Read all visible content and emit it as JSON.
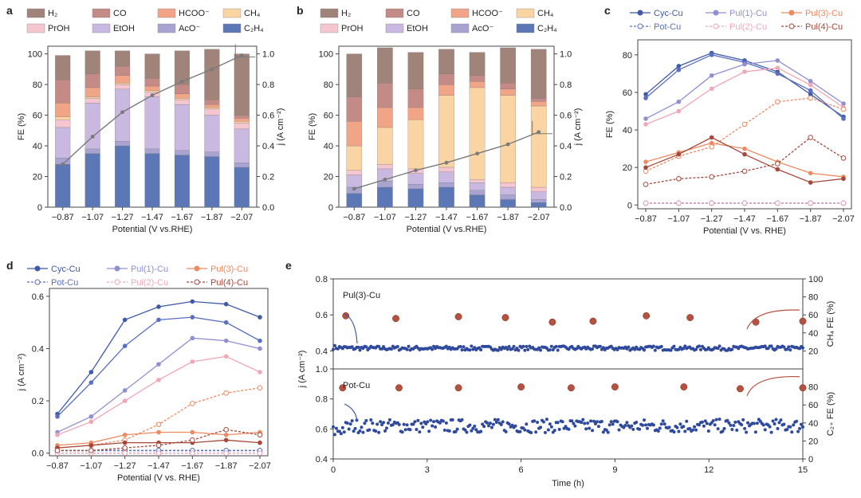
{
  "figure": {
    "panel_letters": [
      "a",
      "b",
      "c",
      "d",
      "e"
    ],
    "legend_ab": [
      {
        "label": "H₂",
        "color": "#a08379"
      },
      {
        "label": "CO",
        "color": "#c48a85"
      },
      {
        "label": "HCOO⁻",
        "color": "#f2a487"
      },
      {
        "label": "CH₄",
        "color": "#fbd4a4"
      },
      {
        "label": "PrOH",
        "color": "#f6c6d0"
      },
      {
        "label": "EtOH",
        "color": "#c9b9e0"
      },
      {
        "label": "AcO⁻",
        "color": "#a9a3d2"
      },
      {
        "label": "C₂H₄",
        "color": "#5b77b5"
      }
    ],
    "legend_cd": [
      {
        "label": "Cyc-Cu",
        "color": "#3f5ba8",
        "dashed": false
      },
      {
        "label": "Pot-Cu",
        "color": "#5a6fc0",
        "dashed": true
      },
      {
        "label": "Pul(1)-Cu",
        "color": "#8f8fd2",
        "dashed": false
      },
      {
        "label": "Pul(2)-Cu",
        "color": "#f0a7b8",
        "dashed": true
      },
      {
        "label": "Pul(3)-Cu",
        "color": "#ec8a62",
        "dashed": false
      },
      {
        "label": "Pul(4)-Cu",
        "color": "#a5483b",
        "dashed": true
      }
    ]
  },
  "chart_data": [
    {
      "id": "a",
      "type": "bar",
      "stacked": true,
      "categories": [
        "−0.87",
        "−1.07",
        "−1.27",
        "−1.47",
        "−1.67",
        "−1.87",
        "−2.07"
      ],
      "series": [
        {
          "name": "C₂H₄",
          "values": [
            28,
            35,
            40,
            35,
            34,
            33,
            26
          ]
        },
        {
          "name": "AcO⁻",
          "values": [
            4,
            3,
            3,
            3,
            3,
            3,
            3
          ]
        },
        {
          "name": "EtOH",
          "values": [
            20,
            30,
            34,
            34,
            30,
            24,
            22
          ]
        },
        {
          "name": "PrOH",
          "values": [
            5,
            3,
            3,
            3,
            3,
            4,
            4
          ]
        },
        {
          "name": "CH₄",
          "values": [
            2,
            1,
            1,
            1,
            1,
            1,
            1
          ]
        },
        {
          "name": "HCOO⁻",
          "values": [
            9,
            6,
            5,
            3,
            3,
            2,
            2
          ]
        },
        {
          "name": "CO",
          "values": [
            15,
            9,
            6,
            5,
            6,
            3,
            2
          ]
        },
        {
          "name": "H₂",
          "values": [
            16,
            15,
            10,
            16,
            22,
            33,
            40
          ]
        }
      ],
      "line": {
        "name": "j",
        "x": [
          0,
          1,
          2,
          3,
          4,
          5,
          6
        ],
        "y": [
          0.28,
          0.46,
          0.62,
          0.73,
          0.82,
          0.9,
          0.99
        ]
      },
      "xlabel": "Potential (V vs.RHE)",
      "ylabel": "FE (%)",
      "y2label": "j (A cm⁻²)",
      "ylim": [
        0,
        105
      ],
      "y2lim": [
        0,
        1.05
      ],
      "yticks": [
        0,
        20,
        40,
        60,
        80,
        100
      ],
      "y2ticks": [
        "0.0",
        "0.2",
        "0.4",
        "0.6",
        "0.8",
        "1.0"
      ]
    },
    {
      "id": "b",
      "type": "bar",
      "stacked": true,
      "categories": [
        "−0.87",
        "−1.07",
        "−1.27",
        "−1.47",
        "−1.67",
        "−1.87",
        "−2.07"
      ],
      "series": [
        {
          "name": "C₂H₄",
          "values": [
            9,
            13,
            12,
            13,
            8,
            5,
            3
          ]
        },
        {
          "name": "AcO⁻",
          "values": [
            4,
            4,
            3,
            3,
            3,
            3,
            2
          ]
        },
        {
          "name": "EtOH",
          "values": [
            8,
            8,
            7,
            7,
            5,
            5,
            5
          ]
        },
        {
          "name": "PrOH",
          "values": [
            3,
            3,
            3,
            3,
            2,
            3,
            3
          ]
        },
        {
          "name": "CH₄",
          "values": [
            16,
            24,
            32,
            47,
            60,
            57,
            53
          ]
        },
        {
          "name": "HCOO⁻",
          "values": [
            16,
            13,
            8,
            7,
            4,
            4,
            3
          ]
        },
        {
          "name": "CO",
          "values": [
            16,
            16,
            12,
            7,
            4,
            4,
            2
          ]
        },
        {
          "name": "H₂",
          "values": [
            28,
            23,
            24,
            16,
            15,
            23,
            32
          ]
        }
      ],
      "line": {
        "name": "j",
        "x": [
          0,
          1,
          2,
          3,
          4,
          5,
          6
        ],
        "y": [
          0.12,
          0.18,
          0.24,
          0.29,
          0.35,
          0.41,
          0.49
        ]
      },
      "xlabel": "Potential (V vs.RHE)",
      "ylabel": "FE (%)",
      "y2label": "j (A cm⁻²)",
      "ylim": [
        0,
        105
      ],
      "y2lim": [
        0,
        1.05
      ],
      "yticks": [
        0,
        20,
        40,
        60,
        80,
        100
      ],
      "y2ticks": [
        "0.0",
        "0.2",
        "0.4",
        "0.6",
        "0.8",
        "1.0"
      ]
    },
    {
      "id": "c",
      "type": "line",
      "categories": [
        "−0.87",
        "−1.07",
        "−1.27",
        "−1.47",
        "−1.67",
        "−1.87",
        "−2.07"
      ],
      "series": [
        {
          "name": "Cyc-Cu",
          "solid": [
            59,
            74,
            81,
            77,
            71,
            59,
            47
          ],
          "dashed": [
            1,
            1,
            1,
            1,
            1,
            1,
            1
          ]
        },
        {
          "name": "Pot-Cu",
          "solid": [
            57,
            72,
            80,
            76,
            70,
            61,
            46
          ],
          "dashed": [
            1,
            1,
            1,
            1,
            1,
            1,
            1
          ]
        },
        {
          "name": "Pul(1)-Cu",
          "solid": [
            46,
            55,
            69,
            75,
            77,
            66,
            54
          ],
          "dashed": [
            1,
            1,
            1,
            1,
            1,
            1,
            1
          ]
        },
        {
          "name": "Pul(2)-Cu",
          "solid": [
            43,
            50,
            62,
            71,
            73,
            64,
            52
          ],
          "dashed": [
            1,
            1,
            1,
            1,
            1,
            1,
            1
          ]
        },
        {
          "name": "Pul(3)-Cu",
          "solid": [
            23,
            28,
            33,
            30,
            23,
            17,
            15
          ],
          "dashed": [
            18,
            26,
            31,
            43,
            55,
            57,
            51
          ]
        },
        {
          "name": "Pul(4)-Cu",
          "solid": [
            20,
            27,
            36,
            27,
            19,
            12,
            14
          ],
          "dashed": [
            11,
            14,
            15,
            18,
            22,
            36,
            25
          ]
        }
      ],
      "xlabel": "Potential (V vs. RHE)",
      "ylabel": "FE (%)",
      "ylim": [
        -2,
        88
      ],
      "yticks": [
        0,
        20,
        40,
        60,
        80
      ]
    },
    {
      "id": "d",
      "type": "line",
      "categories": [
        "−0.87",
        "−1.07",
        "−1.27",
        "−1.47",
        "−1.67",
        "−1.87",
        "−2.07"
      ],
      "series": [
        {
          "name": "Cyc-Cu",
          "solid": [
            0.15,
            0.31,
            0.51,
            0.56,
            0.58,
            0.57,
            0.52
          ],
          "dashed": [
            0.01,
            0.01,
            0.01,
            0.01,
            0.01,
            0.01,
            0.01
          ]
        },
        {
          "name": "Pot-Cu",
          "solid": [
            0.14,
            0.27,
            0.41,
            0.51,
            0.52,
            0.5,
            0.43
          ],
          "dashed": [
            0.01,
            0.01,
            0.01,
            0.01,
            0.01,
            0.01,
            0.01
          ]
        },
        {
          "name": "Pul(1)-Cu",
          "solid": [
            0.08,
            0.14,
            0.24,
            0.34,
            0.44,
            0.43,
            0.4
          ],
          "dashed": [
            0.0,
            0.0,
            0.0,
            0.0,
            0.0,
            0.0,
            0.0
          ]
        },
        {
          "name": "Pul(2)-Cu",
          "solid": [
            0.07,
            0.12,
            0.2,
            0.28,
            0.35,
            0.37,
            0.31
          ],
          "dashed": [
            0.0,
            0.0,
            0.0,
            0.0,
            0.0,
            0.0,
            0.0
          ]
        },
        {
          "name": "Pul(3)-Cu",
          "solid": [
            0.03,
            0.04,
            0.07,
            0.08,
            0.08,
            0.07,
            0.08
          ],
          "dashed": [
            0.02,
            0.03,
            0.05,
            0.11,
            0.19,
            0.23,
            0.25
          ]
        },
        {
          "name": "Pul(4)-Cu",
          "solid": [
            0.02,
            0.03,
            0.04,
            0.04,
            0.04,
            0.05,
            0.04
          ],
          "dashed": [
            0.01,
            0.01,
            0.02,
            0.03,
            0.05,
            0.09,
            0.07
          ]
        }
      ],
      "xlabel": "Potential (V vs. RHE)",
      "ylabel": "j (A cm⁻²)",
      "ylim": [
        -0.01,
        0.63
      ],
      "yticks": [
        "0.0",
        "0.2",
        "0.4",
        "0.6"
      ]
    },
    {
      "id": "e",
      "type": "scatter",
      "subplots": [
        {
          "name": "Pul(3)-Cu",
          "j_mean": 0.415,
          "j_noise": 0.012,
          "j_start": 0.42,
          "fe_name": "CH₄ FE (%)",
          "fe_t": [
            0.4,
            2,
            4,
            5.5,
            7,
            8.3,
            10,
            11.4,
            13.5,
            15
          ],
          "fe_v": [
            59,
            56,
            58,
            57,
            52,
            53,
            59,
            57,
            52,
            53
          ],
          "ylim": [
            0.3,
            0.8
          ],
          "yticks": [
            "0.4",
            "0.6",
            "0.8"
          ],
          "y2ticks": [
            20,
            40,
            60,
            80,
            100
          ],
          "y2lim": [
            0,
            100
          ]
        },
        {
          "name": "Pot-Cu",
          "j_mean": 0.62,
          "j_noise": 0.045,
          "j_start": 0.58,
          "fe_name": "C₂₊ FE (%)",
          "fe_t": [
            0.3,
            2.1,
            4,
            6,
            7.6,
            9,
            11.2,
            13,
            15
          ],
          "fe_v": [
            79,
            79,
            79,
            80,
            79,
            80,
            80,
            78,
            79
          ],
          "ylim": [
            0.4,
            1.0
          ],
          "yticks": [
            "0.4",
            "0.6",
            "0.8",
            "1.0"
          ],
          "y2ticks": [
            0,
            20,
            40,
            60,
            80
          ],
          "y2lim": [
            0,
            100
          ]
        }
      ],
      "xticks": [
        0,
        3,
        6,
        9,
        12,
        15
      ],
      "xlim": [
        0,
        15
      ],
      "xlabel": "Time (h)",
      "ylabel": "j (A cm⁻²)"
    }
  ]
}
